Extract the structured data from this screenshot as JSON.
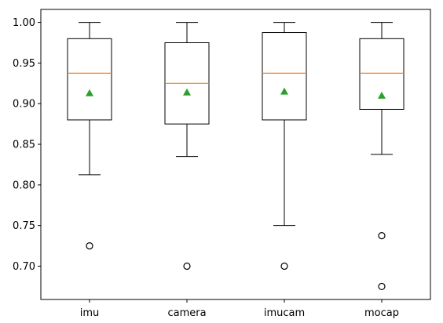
{
  "chart_data": {
    "type": "box",
    "categories": [
      "imu",
      "camera",
      "imucam",
      "mocap"
    ],
    "series": [
      {
        "category": "imu",
        "whisker_low": 0.8125,
        "q1": 0.88,
        "median": 0.9375,
        "q3": 0.98,
        "whisker_high": 1.0,
        "mean": 0.913,
        "outliers": [
          0.725
        ]
      },
      {
        "category": "camera",
        "whisker_low": 0.835,
        "q1": 0.875,
        "median": 0.925,
        "q3": 0.975,
        "whisker_high": 1.0,
        "mean": 0.914,
        "outliers": [
          0.7
        ]
      },
      {
        "category": "imucam",
        "whisker_low": 0.75,
        "q1": 0.88,
        "median": 0.9375,
        "q3": 0.9875,
        "whisker_high": 1.0,
        "mean": 0.915,
        "outliers": [
          0.7
        ]
      },
      {
        "category": "mocap",
        "whisker_low": 0.8375,
        "q1": 0.893,
        "median": 0.9375,
        "q3": 0.98,
        "whisker_high": 1.0,
        "mean": 0.91,
        "outliers": [
          0.7375,
          0.675
        ]
      }
    ],
    "yticks": [
      0.7,
      0.75,
      0.8,
      0.85,
      0.9,
      0.95,
      1.0
    ],
    "ytick_labels": [
      "0.70",
      "0.75",
      "0.80",
      "0.85",
      "0.90",
      "0.95",
      "1.00"
    ],
    "ylim": [
      0.659,
      1.016
    ],
    "title": "",
    "xlabel": "",
    "ylabel": "",
    "grid": false,
    "colors": {
      "box": "#000000",
      "median": "#ff7f0e",
      "mean_marker": "#2ca02c",
      "outlier": "#000000",
      "axes": "#000000",
      "background": "#ffffff"
    }
  }
}
